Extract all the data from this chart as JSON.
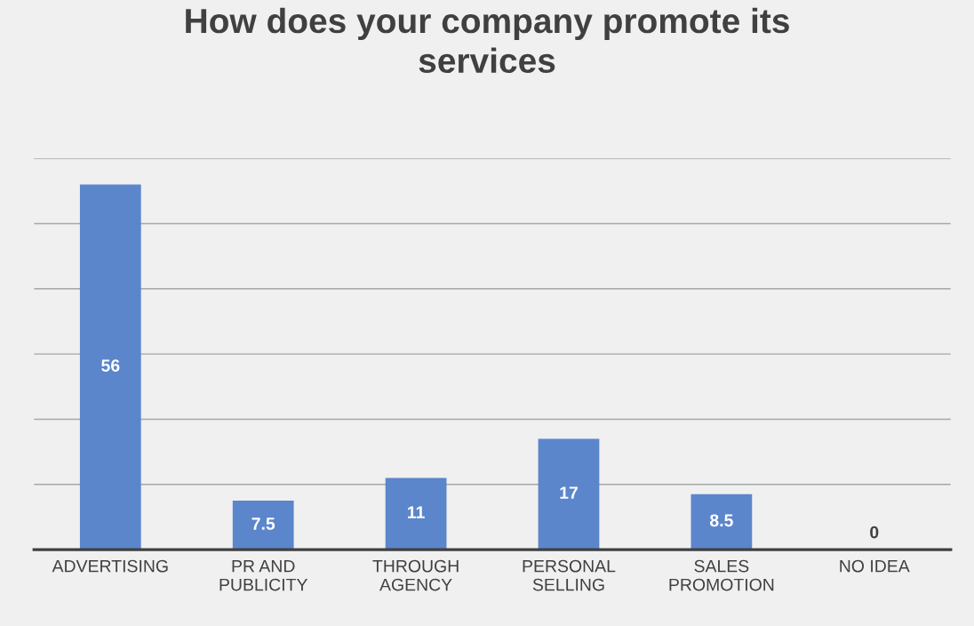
{
  "chart_data": {
    "type": "bar",
    "title": "How does your company promote its services",
    "categories": [
      "ADVERTISING",
      "PR AND PUBLICITY",
      "THROUGH AGENCY",
      "PERSONAL SELLING",
      "SALES PROMOTION",
      "NO IDEA"
    ],
    "values": [
      56,
      7.5,
      11,
      17,
      8.5,
      0
    ],
    "color": "#5b86cc",
    "ylim": [
      0,
      60
    ],
    "yticks": [
      {
        "value": 0,
        "label": null
      },
      {
        "value": 10,
        "label": null
      },
      {
        "value": 20,
        "label": null
      },
      {
        "value": 30,
        "label": null
      },
      {
        "value": 40,
        "label": null
      },
      {
        "value": 50,
        "label": null
      },
      {
        "value": 60,
        "label": null
      }
    ],
    "tick_labels": "x",
    "grid": "y",
    "data_labels": true,
    "legend": false
  }
}
